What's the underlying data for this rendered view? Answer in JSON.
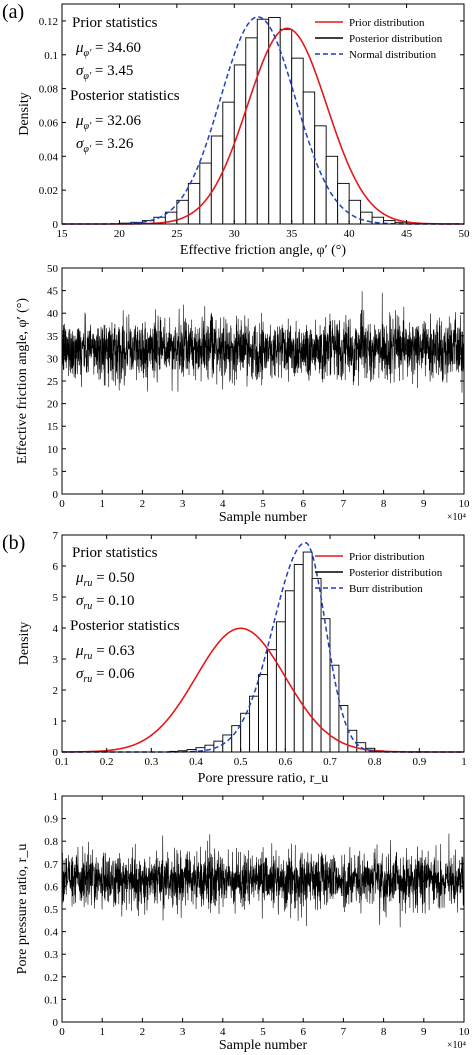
{
  "colors": {
    "prior": "#e31a1c",
    "posterior": "#000000",
    "fit": "#1f3fbf"
  },
  "chart_data": [
    {
      "type": "bar",
      "panel_label": "(a)",
      "xlabel": "Effective friction angle, φ′ (°)",
      "ylabel": "Density",
      "xlim": [
        15,
        50
      ],
      "ylim": [
        0,
        0.13
      ],
      "xticks": [
        "15",
        "20",
        "25",
        "30",
        "35",
        "40",
        "45",
        "50"
      ],
      "yticks": [
        "0",
        "0.02",
        "0.04",
        "0.06",
        "0.08",
        "0.1",
        "0.12"
      ],
      "annotations": {
        "prior_title": "Prior statistics",
        "prior_mu": "μφ′ = 34.60",
        "prior_sigma": "σφ′ = 3.45",
        "post_title": "Posterior statistics",
        "post_mu": "μφ′ = 32.06",
        "post_sigma": "σφ′ = 3.26"
      },
      "legend": [
        "Prior distribution",
        "Posterior distribution",
        "Normal distribution"
      ],
      "legend_position": "top-right",
      "prior": {
        "dist": "normal",
        "mean": 34.6,
        "std": 3.45
      },
      "fit": {
        "dist": "normal",
        "mean": 32.06,
        "std": 3.26
      },
      "bin_edges": [
        20,
        21,
        22,
        23,
        24,
        25,
        26,
        27,
        28,
        29,
        30,
        31,
        32,
        33,
        34,
        35,
        36,
        37,
        38,
        39,
        40,
        41,
        42,
        43,
        44,
        45
      ],
      "values": [
        0.0005,
        0.001,
        0.002,
        0.004,
        0.007,
        0.014,
        0.024,
        0.036,
        0.052,
        0.072,
        0.094,
        0.11,
        0.121,
        0.122,
        0.115,
        0.098,
        0.078,
        0.058,
        0.04,
        0.024,
        0.014,
        0.007,
        0.004,
        0.002,
        0.001
      ]
    },
    {
      "type": "line",
      "xlabel": "Sample number",
      "ylabel": "Effective friction angle, φ′ (°)",
      "xlim": [
        0,
        100000
      ],
      "ylim": [
        0,
        50
      ],
      "xticks": [
        "0",
        "1",
        "2",
        "3",
        "4",
        "5",
        "6",
        "7",
        "8",
        "9",
        "10"
      ],
      "yticks": [
        "0",
        "5",
        "10",
        "15",
        "20",
        "25",
        "30",
        "35",
        "40",
        "45",
        "50"
      ],
      "x_multiplier": "×10⁴",
      "series": {
        "mean": 32.06,
        "std": 3.26,
        "n": 100000
      }
    },
    {
      "type": "bar",
      "panel_label": "(b)",
      "xlabel": "Pore pressure ratio, r_u",
      "ylabel": "Density",
      "xlim": [
        0.1,
        1
      ],
      "ylim": [
        0,
        7
      ],
      "xticks": [
        "0.1",
        "0.2",
        "0.3",
        "0.4",
        "0.5",
        "0.6",
        "0.7",
        "0.8",
        "0.9",
        "1"
      ],
      "yticks": [
        "0",
        "1",
        "2",
        "3",
        "4",
        "5",
        "6",
        "7"
      ],
      "annotations": {
        "prior_title": "Prior statistics",
        "prior_mu": "μru = 0.50",
        "prior_sigma": "σru = 0.10",
        "post_title": "Posterior statistics",
        "post_mu": "μru = 0.63",
        "post_sigma": "σru = 0.06"
      },
      "legend": [
        "Prior distribution",
        "Posterior distribution",
        "Burr distribution"
      ],
      "legend_position": "top-right",
      "prior": {
        "dist": "normal",
        "mean": 0.5,
        "std": 0.1
      },
      "fit": {
        "dist": "burr",
        "mode": 0.645,
        "peak": 6.75
      },
      "bin_edges": [
        0.34,
        0.36,
        0.38,
        0.4,
        0.42,
        0.44,
        0.46,
        0.48,
        0.5,
        0.52,
        0.54,
        0.56,
        0.58,
        0.6,
        0.62,
        0.64,
        0.66,
        0.68,
        0.7,
        0.72,
        0.74,
        0.76,
        0.78,
        0.8,
        0.82
      ],
      "values": [
        0.02,
        0.04,
        0.08,
        0.14,
        0.22,
        0.35,
        0.55,
        0.85,
        1.25,
        1.8,
        2.5,
        3.3,
        4.2,
        5.2,
        6.05,
        6.45,
        5.6,
        4.3,
        2.8,
        1.5,
        0.7,
        0.3,
        0.12,
        0.04
      ]
    },
    {
      "type": "line",
      "xlabel": "Sample number",
      "ylabel": "Pore pressure ratio, r_u",
      "xlim": [
        0,
        100000
      ],
      "ylim": [
        0,
        1
      ],
      "xticks": [
        "0",
        "1",
        "2",
        "3",
        "4",
        "5",
        "6",
        "7",
        "8",
        "9",
        "10"
      ],
      "yticks": [
        "0",
        "0.1",
        "0.2",
        "0.3",
        "0.4",
        "0.5",
        "0.6",
        "0.7",
        "0.8",
        "0.9",
        "1"
      ],
      "x_multiplier": "×10⁴",
      "series": {
        "mean": 0.63,
        "std": 0.06,
        "n": 100000
      }
    }
  ]
}
